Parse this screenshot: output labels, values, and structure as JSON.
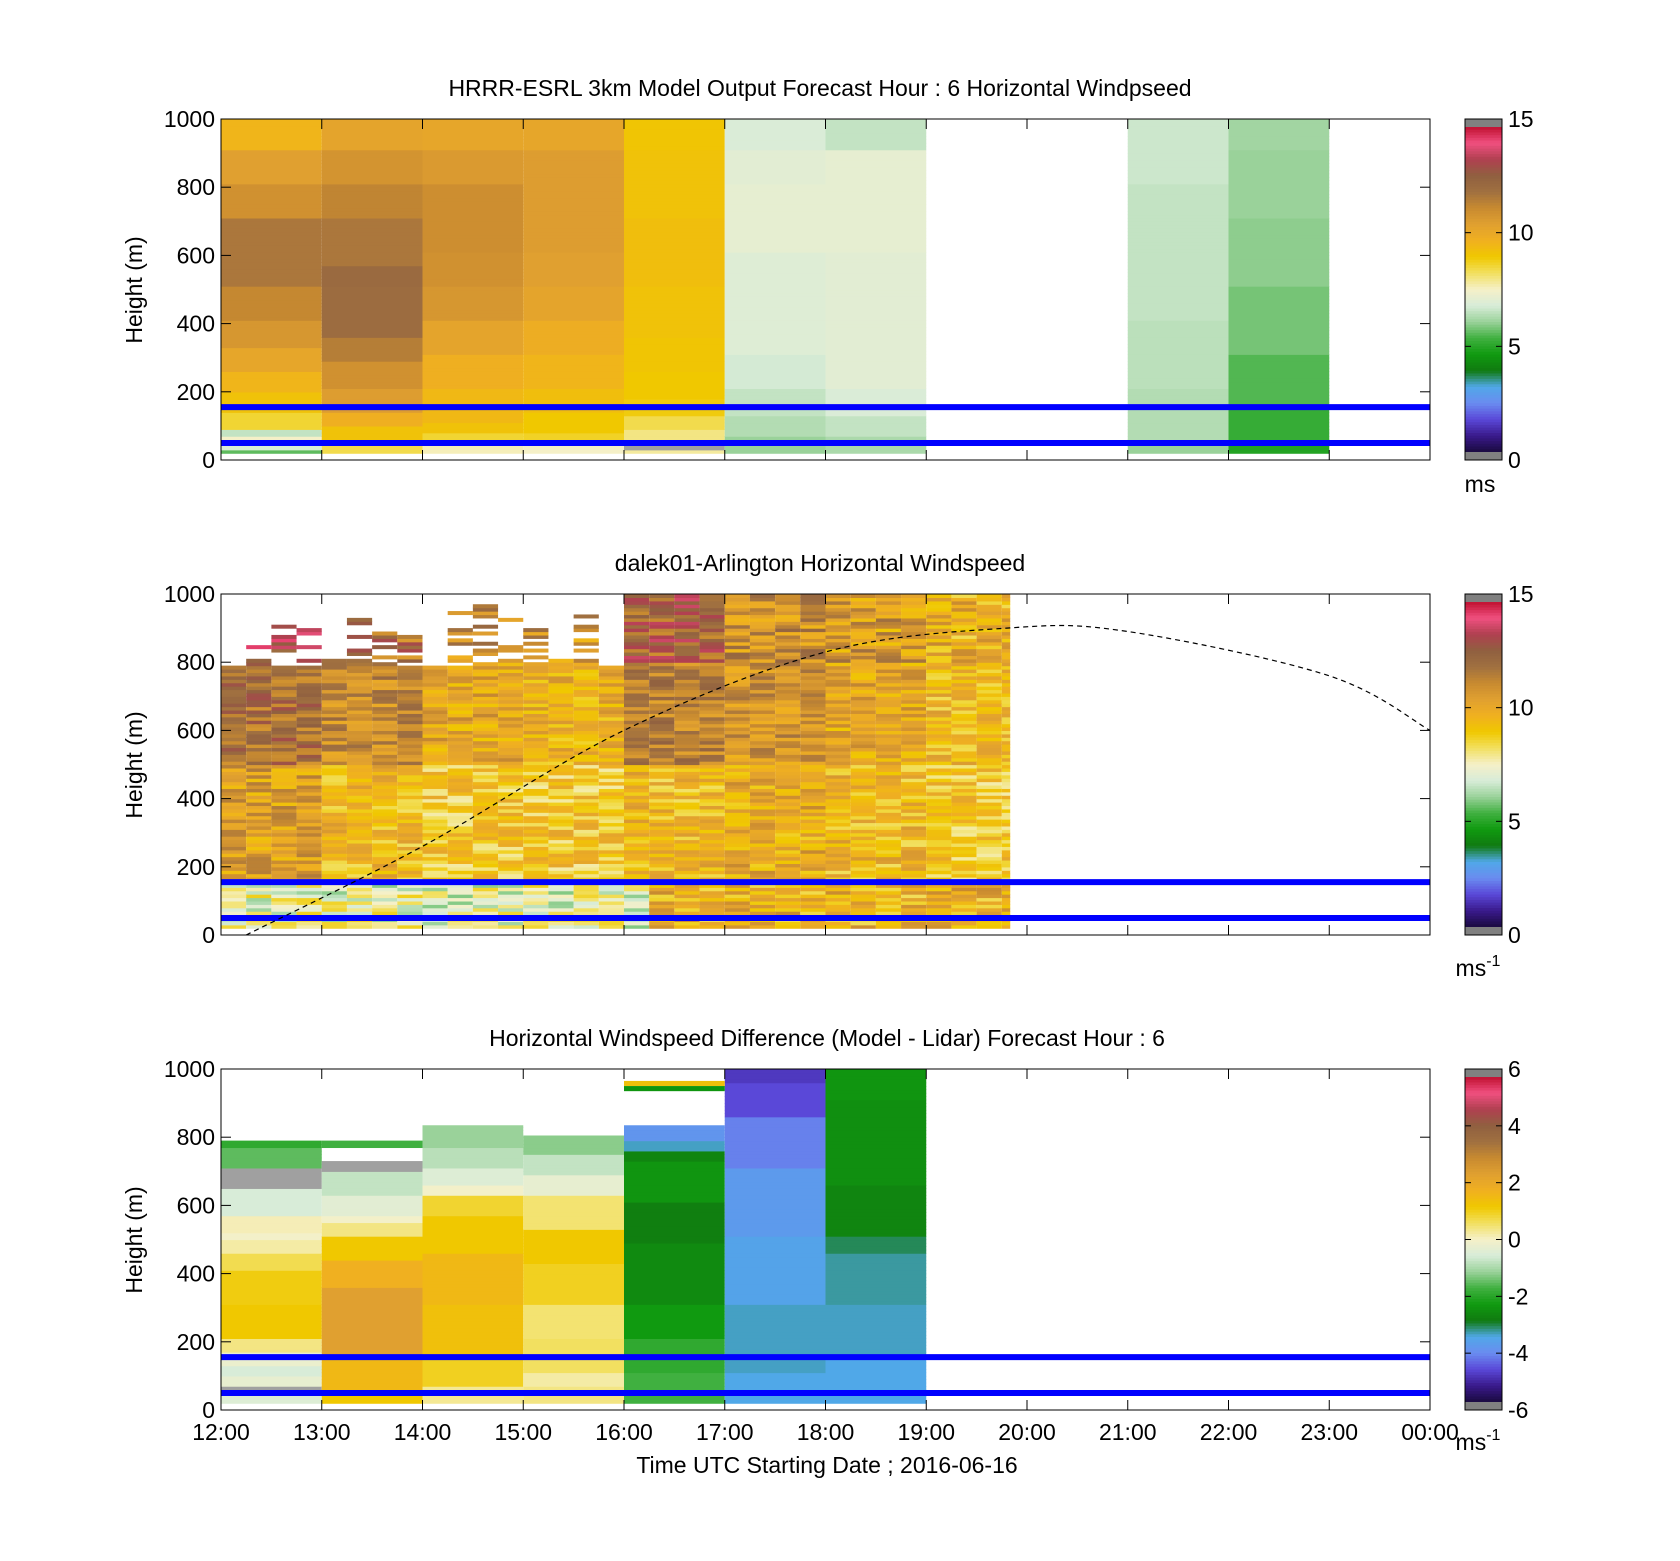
{
  "xaxis": {
    "label": "Time UTC  Starting Date ; 2016-06-16",
    "ticks": [
      "12:00",
      "13:00",
      "14:00",
      "15:00",
      "16:00",
      "17:00",
      "18:00",
      "19:00",
      "20:00",
      "21:00",
      "22:00",
      "23:00",
      "00:00"
    ]
  },
  "colors": {
    "bands": [
      "#0000ff"
    ],
    "colormap": [
      "#808080",
      "#1a0a40",
      "#3a1a8c",
      "#5a48d8",
      "#6a8cf0",
      "#50a8e8",
      "#107a10",
      "#109a10",
      "#40b040",
      "#9ad29a",
      "#d8ecd8",
      "#f5f0c8",
      "#f2e060",
      "#f0c800",
      "#f0b020",
      "#e0a030",
      "#c88a30",
      "#a07040",
      "#906040",
      "#b04050",
      "#f05080",
      "#c01030",
      "#808080"
    ]
  },
  "chart_data": [
    {
      "type": "heatmap",
      "title": "HRRR-ESRL 3km Model Output   Forecast Hour : 6 Horizontal Windpseed",
      "ylabel": "Height (m)",
      "xlabel": "",
      "xlim": [
        "12:00",
        "00:00"
      ],
      "ylim": [
        0,
        1000
      ],
      "yticks": [
        "0",
        "200",
        "400",
        "600",
        "800",
        "1000"
      ],
      "clim": [
        0,
        15
      ],
      "cticks": [
        "0",
        "5",
        "10",
        "15"
      ],
      "clabel": "ms",
      "columns": [
        {
          "t0": 12,
          "t1": 13,
          "top": 1000,
          "levels": [
            {
              "h": 0,
              "v": 5.5
            },
            {
              "h": 20,
              "v": 6.8
            },
            {
              "h": 40,
              "v": 7.5
            },
            {
              "h": 60,
              "v": 6.5
            },
            {
              "h": 80,
              "v": 8.6
            },
            {
              "h": 130,
              "v": 9.2
            },
            {
              "h": 190,
              "v": 9.6
            },
            {
              "h": 250,
              "v": 10.2
            },
            {
              "h": 320,
              "v": 10.8
            },
            {
              "h": 400,
              "v": 11.3
            },
            {
              "h": 500,
              "v": 11.8
            },
            {
              "h": 700,
              "v": 11.0
            },
            {
              "h": 800,
              "v": 10.5
            },
            {
              "h": 900,
              "v": 9.6
            }
          ]
        },
        {
          "t0": 13,
          "t1": 14,
          "top": 1000,
          "levels": [
            {
              "h": 0,
              "v": 8.4
            },
            {
              "h": 50,
              "v": 9.2
            },
            {
              "h": 90,
              "v": 9.8
            },
            {
              "h": 130,
              "v": 10.6
            },
            {
              "h": 200,
              "v": 11.0
            },
            {
              "h": 280,
              "v": 11.6
            },
            {
              "h": 350,
              "v": 12.2
            },
            {
              "h": 500,
              "v": 12.3
            },
            {
              "h": 560,
              "v": 11.8
            },
            {
              "h": 700,
              "v": 11.4
            },
            {
              "h": 800,
              "v": 10.9
            },
            {
              "h": 900,
              "v": 10.3
            }
          ]
        },
        {
          "t0": 14,
          "t1": 15,
          "top": 1000,
          "levels": [
            {
              "h": 0,
              "v": 7.6
            },
            {
              "h": 40,
              "v": 8.6
            },
            {
              "h": 70,
              "v": 9.2
            },
            {
              "h": 100,
              "v": 9.5
            },
            {
              "h": 200,
              "v": 9.8
            },
            {
              "h": 300,
              "v": 10.3
            },
            {
              "h": 400,
              "v": 10.8
            },
            {
              "h": 500,
              "v": 11.0
            },
            {
              "h": 600,
              "v": 11.1
            },
            {
              "h": 800,
              "v": 10.7
            },
            {
              "h": 900,
              "v": 10.2
            }
          ]
        },
        {
          "t0": 15,
          "t1": 16,
          "top": 1000,
          "levels": [
            {
              "h": 0,
              "v": 7.5
            },
            {
              "h": 40,
              "v": 8.7
            },
            {
              "h": 70,
              "v": 9.0
            },
            {
              "h": 130,
              "v": 9.3
            },
            {
              "h": 200,
              "v": 9.6
            },
            {
              "h": 300,
              "v": 9.9
            },
            {
              "h": 400,
              "v": 10.3
            },
            {
              "h": 500,
              "v": 10.5
            },
            {
              "h": 600,
              "v": 10.6
            },
            {
              "h": 900,
              "v": 10.2
            }
          ]
        },
        {
          "t0": 16,
          "t1": 17,
          "top": 1000,
          "levels": [
            {
              "h": 0,
              "v": 7.8
            },
            {
              "h": 20,
              "v": -1
            },
            {
              "h": 40,
              "v": 8.0
            },
            {
              "h": 80,
              "v": 8.4
            },
            {
              "h": 120,
              "v": 8.9
            },
            {
              "h": 170,
              "v": 9.0
            },
            {
              "h": 250,
              "v": 9.1
            },
            {
              "h": 350,
              "v": 9.2
            },
            {
              "h": 500,
              "v": 9.3
            },
            {
              "h": 700,
              "v": 9.2
            },
            {
              "h": 900,
              "v": 9.1
            }
          ]
        },
        {
          "t0": 17,
          "t1": 18,
          "top": 1000,
          "levels": [
            {
              "h": 0,
              "v": 6.0
            },
            {
              "h": 60,
              "v": 6.3
            },
            {
              "h": 120,
              "v": 6.5
            },
            {
              "h": 200,
              "v": 6.7
            },
            {
              "h": 300,
              "v": 6.9
            },
            {
              "h": 600,
              "v": 7.1
            },
            {
              "h": 800,
              "v": 7.0
            },
            {
              "h": 900,
              "v": 6.8
            }
          ]
        },
        {
          "t0": 18,
          "t1": 19,
          "top": 1000,
          "levels": [
            {
              "h": 0,
              "v": 6.2
            },
            {
              "h": 60,
              "v": 6.5
            },
            {
              "h": 120,
              "v": 6.8
            },
            {
              "h": 200,
              "v": 7.0
            },
            {
              "h": 600,
              "v": 7.1
            },
            {
              "h": 900,
              "v": 6.5
            }
          ]
        },
        {
          "t0": 21,
          "t1": 22,
          "top": 1000,
          "levels": [
            {
              "h": 0,
              "v": 6.0
            },
            {
              "h": 50,
              "v": 6.3
            },
            {
              "h": 200,
              "v": 6.4
            },
            {
              "h": 400,
              "v": 6.5
            },
            {
              "h": 600,
              "v": 6.5
            },
            {
              "h": 800,
              "v": 6.6
            }
          ]
        },
        {
          "t0": 22,
          "t1": 23,
          "top": 1000,
          "levels": [
            {
              "h": 0,
              "v": 4.8
            },
            {
              "h": 50,
              "v": 5.1
            },
            {
              "h": 150,
              "v": 5.4
            },
            {
              "h": 300,
              "v": 5.7
            },
            {
              "h": 500,
              "v": 5.9
            },
            {
              "h": 700,
              "v": 6.0
            },
            {
              "h": 900,
              "v": 6.1
            }
          ]
        }
      ],
      "bands_m": [
        50,
        155
      ]
    },
    {
      "type": "heatmap",
      "title": "dalek01-Arlington  Horizontal Windspeed",
      "ylabel": "Height (m)",
      "xlabel": "",
      "xlim": [
        "12:00",
        "00:00"
      ],
      "ylim": [
        0,
        1000
      ],
      "yticks": [
        "0",
        "200",
        "400",
        "600",
        "800",
        "1000"
      ],
      "clim": [
        0,
        15
      ],
      "cticks": [
        "0",
        "5",
        "10",
        "15"
      ],
      "clabel": "ms",
      "clabel_sup": "-1",
      "profile_interval_min": 15,
      "data_end": "19:50",
      "low_level_m": 150,
      "low_level_speed": 7.0,
      "bulk_speed_by_hour": [
        {
          "t": 12,
          "lo": 10.5,
          "mid": 12.0,
          "hi": 13.0
        },
        {
          "t": 13,
          "lo": 9.5,
          "mid": 11.2,
          "hi": 12.0
        },
        {
          "t": 14,
          "lo": 9.0,
          "mid": 10.2,
          "hi": 11.0
        },
        {
          "t": 15,
          "lo": 9.0,
          "mid": 9.8,
          "hi": 10.8
        },
        {
          "t": 16,
          "lo": 9.5,
          "mid": 11.5,
          "hi": 12.5
        },
        {
          "t": 17,
          "lo": 10.0,
          "mid": 10.8,
          "hi": 11.0
        },
        {
          "t": 18,
          "lo": 9.5,
          "mid": 10.2,
          "hi": 10.6
        },
        {
          "t": 19,
          "lo": 9.0,
          "mid": 9.5,
          "hi": 9.8
        }
      ],
      "dashed_curve": {
        "description_none": "",
        "points": [
          {
            "t": 12.25,
            "h": 0
          },
          {
            "t": 14,
            "h": 260
          },
          {
            "t": 16,
            "h": 600
          },
          {
            "t": 18,
            "h": 830
          },
          {
            "t": 19.8,
            "h": 900
          },
          {
            "t": 21,
            "h": 890
          },
          {
            "t": 23,
            "h": 760
          },
          {
            "t": 24,
            "h": 600
          }
        ]
      },
      "bands_m": [
        50,
        155
      ]
    },
    {
      "type": "heatmap",
      "title": "Horizontal Windspeed Difference (Model - Lidar) Forecast Hour : 6",
      "ylabel": "Height (m)",
      "xlabel": "Time UTC  Starting Date ; 2016-06-16",
      "xlim": [
        "12:00",
        "00:00"
      ],
      "ylim": [
        0,
        1000
      ],
      "yticks": [
        "0",
        "200",
        "400",
        "600",
        "800",
        "1000"
      ],
      "clim": [
        -6,
        6
      ],
      "cticks": [
        "-6",
        "-4",
        "-2",
        "0",
        "2",
        "4",
        "6"
      ],
      "clabel": "ms",
      "clabel_sup": "-1",
      "columns": [
        {
          "t0": 12,
          "t1": 13,
          "top": 790,
          "levels": [
            {
              "h": 0,
              "v": -0.5
            },
            {
              "h": 40,
              "v": -1.0
            },
            {
              "h": 60,
              "v": -0.3
            },
            {
              "h": 90,
              "v": -0.6
            },
            {
              "h": 120,
              "v": -0.2
            },
            {
              "h": 160,
              "v": 0.4
            },
            {
              "h": 200,
              "v": 1.2
            },
            {
              "h": 300,
              "v": 1.1
            },
            {
              "h": 400,
              "v": 0.7
            },
            {
              "h": 450,
              "v": 0.2
            },
            {
              "h": 490,
              "v": -0.05
            },
            {
              "h": 510,
              "v": 0.1
            },
            {
              "h": 560,
              "v": -0.6
            },
            {
              "h": 640,
              "v": -1.0
            },
            {
              "h": 700,
              "v": -1.6
            },
            {
              "h": 760,
              "v": -2.0
            }
          ]
        },
        {
          "t0": 13,
          "t1": 14,
          "top": 790,
          "levels": [
            {
              "h": 0,
              "v": 1.2
            },
            {
              "h": 50,
              "v": 1.6
            },
            {
              "h": 150,
              "v": 2.4
            },
            {
              "h": 350,
              "v": 1.8
            },
            {
              "h": 430,
              "v": 1.2
            },
            {
              "h": 500,
              "v": 0.4
            },
            {
              "h": 540,
              "v": -0.05
            },
            {
              "h": 560,
              "v": -0.4
            },
            {
              "h": 620,
              "v": -0.8
            },
            {
              "h": 690,
              "v": -1.0
            },
            {
              "h": 720,
              "v": -9
            },
            {
              "h": 760,
              "v": -1.8
            },
            {
              "h": 780,
              "v": -9
            }
          ]
        },
        {
          "t0": 14,
          "t1": 15,
          "top": 835,
          "levels": [
            {
              "h": 0,
              "v": 0.3
            },
            {
              "h": 60,
              "v": 1.0
            },
            {
              "h": 150,
              "v": 1.4
            },
            {
              "h": 300,
              "v": 1.6
            },
            {
              "h": 450,
              "v": 1.2
            },
            {
              "h": 560,
              "v": 0.9
            },
            {
              "h": 620,
              "v": -0.05
            },
            {
              "h": 650,
              "v": -0.5
            },
            {
              "h": 700,
              "v": -0.9
            },
            {
              "h": 760,
              "v": -1.2
            }
          ]
        },
        {
          "t0": 15,
          "t1": 16,
          "top": 805,
          "levels": [
            {
              "h": 0,
              "v": 0.4
            },
            {
              "h": 60,
              "v": 0.2
            },
            {
              "h": 100,
              "v": 0.6
            },
            {
              "h": 200,
              "v": 0.5
            },
            {
              "h": 300,
              "v": 1.0
            },
            {
              "h": 420,
              "v": 1.2
            },
            {
              "h": 520,
              "v": 0.5
            },
            {
              "h": 620,
              "v": -0.3
            },
            {
              "h": 680,
              "v": -0.8
            },
            {
              "h": 740,
              "v": -1.3
            }
          ]
        },
        {
          "t0": 16,
          "t1": 17,
          "top": 835,
          "levels": [
            {
              "h": 0,
              "v": -1.8
            },
            {
              "h": 100,
              "v": -2.0
            },
            {
              "h": 200,
              "v": -2.4
            },
            {
              "h": 300,
              "v": -2.7
            },
            {
              "h": 480,
              "v": -2.9
            },
            {
              "h": 600,
              "v": -2.5
            },
            {
              "h": 720,
              "v": -2.8
            },
            {
              "h": 750,
              "v": -3.5
            },
            {
              "h": 780,
              "v": -4.0
            }
          ]
        },
        {
          "t0": 17,
          "t1": 18,
          "top": 1000,
          "levels": [
            {
              "h": 0,
              "v": -3.6
            },
            {
              "h": 100,
              "v": -3.5
            },
            {
              "h": 300,
              "v": -3.7
            },
            {
              "h": 500,
              "v": -3.9
            },
            {
              "h": 700,
              "v": -4.3
            },
            {
              "h": 850,
              "v": -4.8
            },
            {
              "h": 950,
              "v": -5.0
            }
          ]
        },
        {
          "t0": 18,
          "t1": 19,
          "top": 1000,
          "levels": [
            {
              "h": 0,
              "v": -3.6
            },
            {
              "h": 150,
              "v": -3.5
            },
            {
              "h": 300,
              "v": -3.4
            },
            {
              "h": 450,
              "v": -3.2
            },
            {
              "h": 500,
              "v": -2.8
            },
            {
              "h": 650,
              "v": -2.6
            },
            {
              "h": 900,
              "v": -2.5
            }
          ]
        }
      ],
      "extra_strips": [
        {
          "t0": 16,
          "t1": 17,
          "h0": 950,
          "h1": 965,
          "v": 1.4
        },
        {
          "t0": 16,
          "t1": 17,
          "h0": 935,
          "h1": 950,
          "v": -2.5
        }
      ],
      "bands_m": [
        50,
        155
      ]
    }
  ]
}
